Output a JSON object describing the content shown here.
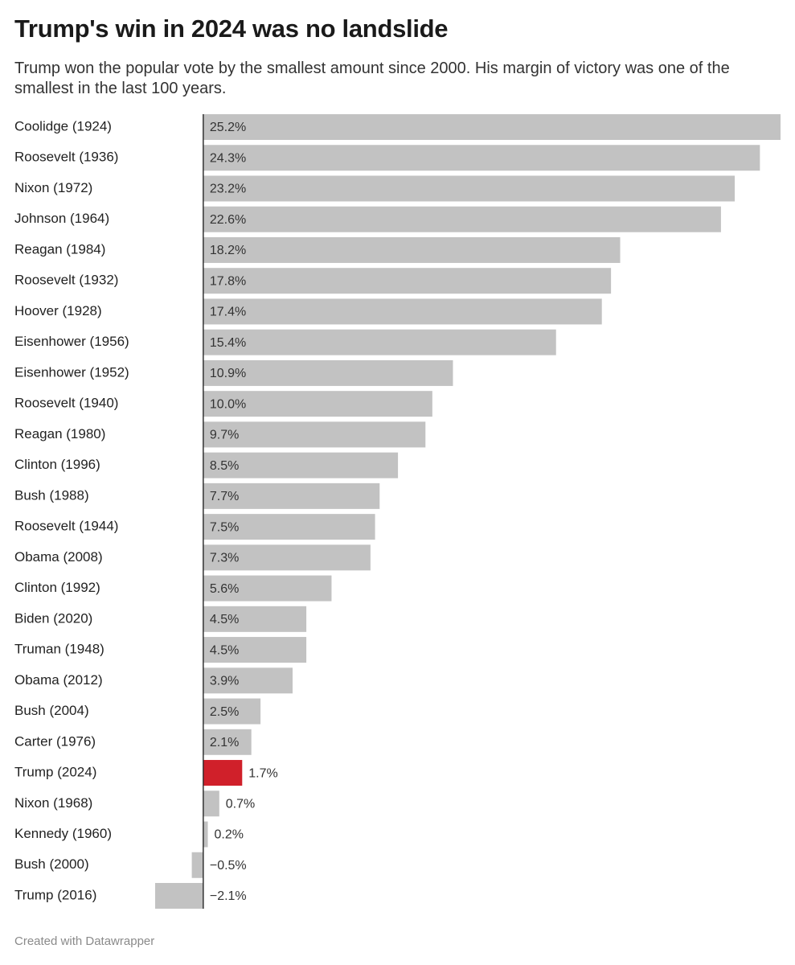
{
  "chart_data": {
    "type": "hbar",
    "title": "Trump's win in 2024 was no landslide",
    "subtitle": "Trump won the popular vote by the smallest amount since 2000. His margin of victory was one of the smallest in the last 100 years.",
    "footer": "Created with Datawrapper",
    "categories": [
      "Coolidge (1924)",
      "Roosevelt (1936)",
      "Nixon (1972)",
      "Johnson (1964)",
      "Reagan (1984)",
      "Roosevelt (1932)",
      "Hoover (1928)",
      "Eisenhower (1956)",
      "Eisenhower (1952)",
      "Roosevelt (1940)",
      "Reagan (1980)",
      "Clinton (1996)",
      "Bush (1988)",
      "Roosevelt (1944)",
      "Obama (2008)",
      "Clinton (1992)",
      "Biden (2020)",
      "Truman (1948)",
      "Obama (2012)",
      "Bush (2004)",
      "Carter (1976)",
      "Trump (2024)",
      "Nixon (1968)",
      "Kennedy (1960)",
      "Bush (2000)",
      "Trump (2016)"
    ],
    "values": [
      25.2,
      24.3,
      23.2,
      22.6,
      18.2,
      17.8,
      17.4,
      15.4,
      10.9,
      10.0,
      9.7,
      8.5,
      7.7,
      7.5,
      7.3,
      5.6,
      4.5,
      4.5,
      3.9,
      2.5,
      2.1,
      1.7,
      0.7,
      0.2,
      -0.5,
      -2.1
    ],
    "value_labels": [
      "25.2%",
      "24.3%",
      "23.2%",
      "22.6%",
      "18.2%",
      "17.8%",
      "17.4%",
      "15.4%",
      "10.9%",
      "10.0%",
      "9.7%",
      "8.5%",
      "7.7%",
      "7.5%",
      "7.3%",
      "5.6%",
      "4.5%",
      "4.5%",
      "3.9%",
      "2.5%",
      "2.1%",
      "1.7%",
      "0.7%",
      "0.2%",
      "−0.5%",
      "−2.1%"
    ],
    "colors": [
      "#c2c2c2",
      "#c2c2c2",
      "#c2c2c2",
      "#c2c2c2",
      "#c2c2c2",
      "#c2c2c2",
      "#c2c2c2",
      "#c2c2c2",
      "#c2c2c2",
      "#c2c2c2",
      "#c2c2c2",
      "#c2c2c2",
      "#c2c2c2",
      "#c2c2c2",
      "#c2c2c2",
      "#c2c2c2",
      "#c2c2c2",
      "#c2c2c2",
      "#c2c2c2",
      "#c2c2c2",
      "#c2c2c2",
      "#d0202a",
      "#c2c2c2",
      "#c2c2c2",
      "#c2c2c2",
      "#c2c2c2"
    ],
    "xlim": [
      -2.1,
      25.2
    ]
  }
}
